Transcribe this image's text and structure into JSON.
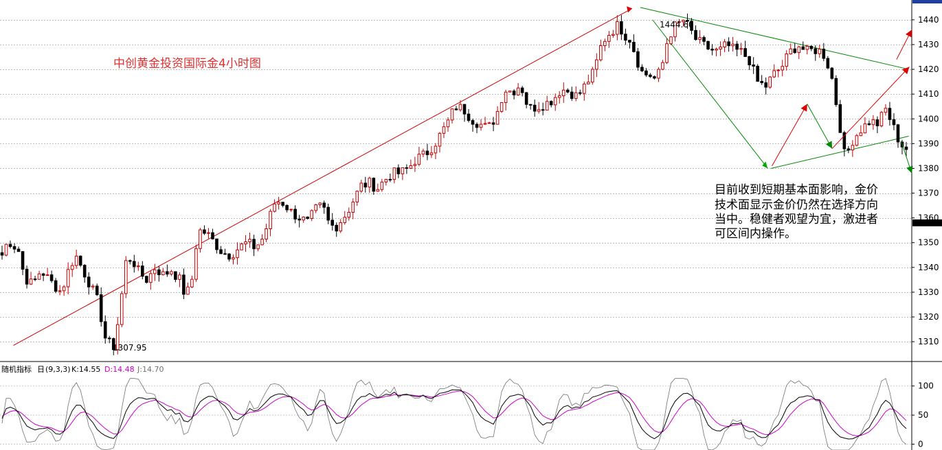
{
  "chart_data": {
    "type": "candlestick",
    "title": "中创黄金投资国际金4小时图",
    "annotation_lines": [
      "目前收到短期基本面影响，金价",
      "技术面显示金价仍然在选择方向",
      "当中。稳健者观望为宜，激进者",
      "可区间内操作。"
    ],
    "price_axis": {
      "ylim": [
        1302,
        1448
      ],
      "ticks": [
        1310,
        1320,
        1330,
        1340,
        1350,
        1360,
        1370,
        1380,
        1390,
        1400,
        1410,
        1420,
        1430,
        1440
      ],
      "current_price_marker": 1358
    },
    "low_label": {
      "text": "1307.95",
      "value": 1307.95
    },
    "high_label": {
      "text": "1444.60",
      "value": 1444.6
    },
    "bar_count": 220,
    "anchors": [
      [
        0,
        1345
      ],
      [
        3,
        1351
      ],
      [
        8,
        1347
      ],
      [
        11,
        1336
      ],
      [
        15,
        1333
      ],
      [
        19,
        1339
      ],
      [
        23,
        1335
      ],
      [
        29,
        1330
      ],
      [
        33,
        1340
      ],
      [
        36,
        1345
      ],
      [
        42,
        1335
      ],
      [
        47,
        1326
      ],
      [
        51,
        1310
      ],
      [
        55,
        1308
      ],
      [
        58,
        1325
      ],
      [
        61,
        1344
      ],
      [
        64,
        1343
      ],
      [
        67,
        1338
      ],
      [
        71,
        1335
      ],
      [
        75,
        1340
      ],
      [
        79,
        1337
      ],
      [
        83,
        1339
      ],
      [
        87,
        1335
      ],
      [
        90,
        1328
      ],
      [
        93,
        1335
      ],
      [
        96,
        1355
      ],
      [
        100,
        1354
      ],
      [
        104,
        1350
      ],
      [
        108,
        1346
      ],
      [
        112,
        1345
      ],
      [
        116,
        1348
      ],
      [
        120,
        1350
      ],
      [
        124,
        1348
      ],
      [
        128,
        1352
      ],
      [
        131,
        1360
      ],
      [
        134,
        1367
      ],
      [
        138,
        1366
      ],
      [
        142,
        1362
      ],
      [
        146,
        1360
      ],
      [
        150,
        1358
      ],
      [
        153,
        1363
      ],
      [
        157,
        1365
      ],
      [
        160,
        1358
      ],
      [
        163,
        1356
      ],
      [
        166,
        1359
      ],
      [
        169,
        1362
      ],
      [
        172,
        1367
      ],
      [
        176,
        1373
      ],
      [
        180,
        1374
      ],
      [
        184,
        1372
      ],
      [
        187,
        1375
      ],
      [
        191,
        1378
      ],
      [
        195,
        1378
      ],
      [
        199,
        1380
      ],
      [
        203,
        1384
      ],
      [
        206,
        1385
      ],
      [
        209,
        1387
      ],
      [
        212,
        1390
      ],
      [
        215,
        1394
      ],
      [
        218,
        1398
      ],
      [
        222,
        1405
      ],
      [
        226,
        1404
      ],
      [
        230,
        1400
      ],
      [
        234,
        1398
      ],
      [
        238,
        1396
      ],
      [
        242,
        1401
      ],
      [
        246,
        1412
      ],
      [
        250,
        1411
      ],
      [
        254,
        1414
      ],
      [
        258,
        1404
      ],
      [
        262,
        1405
      ],
      [
        266,
        1406
      ],
      [
        270,
        1408
      ],
      [
        274,
        1412
      ],
      [
        278,
        1411
      ],
      [
        282,
        1409
      ],
      [
        286,
        1414
      ],
      [
        290,
        1419
      ],
      [
        294,
        1431
      ],
      [
        298,
        1435
      ],
      [
        302,
        1438
      ],
      [
        305,
        1434
      ],
      [
        308,
        1432
      ],
      [
        311,
        1424
      ],
      [
        314,
        1418
      ],
      [
        317,
        1418
      ],
      [
        320,
        1416
      ],
      [
        323,
        1420
      ],
      [
        326,
        1432
      ],
      [
        329,
        1437
      ],
      [
        331,
        1438
      ],
      [
        334,
        1440
      ],
      [
        337,
        1436
      ],
      [
        340,
        1432
      ],
      [
        343,
        1430
      ],
      [
        347,
        1428
      ],
      [
        351,
        1427
      ],
      [
        355,
        1430
      ],
      [
        358,
        1428
      ],
      [
        362,
        1427
      ],
      [
        366,
        1424
      ],
      [
        370,
        1415
      ],
      [
        374,
        1413
      ],
      [
        378,
        1418
      ],
      [
        382,
        1421
      ],
      [
        386,
        1427
      ],
      [
        390,
        1430
      ],
      [
        394,
        1427
      ],
      [
        398,
        1428
      ],
      [
        402,
        1427
      ],
      [
        406,
        1419
      ],
      [
        410,
        1400
      ],
      [
        413,
        1384
      ],
      [
        417,
        1392
      ],
      [
        421,
        1396
      ],
      [
        425,
        1399
      ],
      [
        429,
        1398
      ],
      [
        433,
        1404
      ],
      [
        437,
        1396
      ],
      [
        440,
        1390
      ],
      [
        443,
        1388
      ]
    ],
    "trendlines": [
      {
        "color": "#cc0000",
        "from": [
          0.44,
          1308.5
        ],
        "to": [
          20.8,
          1444.6
        ]
      },
      {
        "color": "#008800",
        "from": [
          21.07,
          1445
        ],
        "to": [
          29.9,
          1420
        ]
      },
      {
        "color": "#008800",
        "from": [
          21.47,
          1440
        ],
        "to": [
          25.26,
          1380
        ]
      },
      {
        "color": "#008800",
        "from": [
          25.37,
          1380
        ],
        "to": [
          29.9,
          1393
        ]
      }
    ],
    "arrows": [
      {
        "color": "#dd0000",
        "from": [
          25.4,
          1381
        ],
        "to": [
          26.56,
          1406
        ]
      },
      {
        "color": "#008800",
        "from": [
          26.56,
          1406
        ],
        "to": [
          27.38,
          1388
        ]
      },
      {
        "color": "#dd0000",
        "from": [
          27.38,
          1388
        ],
        "to": [
          29.92,
          1421
        ]
      },
      {
        "color": "#dd0000",
        "from": [
          29.5,
          1424
        ],
        "to": [
          30.0,
          1436
        ]
      },
      {
        "color": "#008800",
        "from": [
          29.65,
          1391
        ],
        "to": [
          30.0,
          1378
        ]
      }
    ],
    "indicator": {
      "name": "随机指标",
      "period": "日",
      "params": "(9,3,3)",
      "k_label": "K:14.55",
      "d_label": "D:14.48",
      "j_label": "J:14.70",
      "ylim": [
        -10,
        115
      ],
      "ticks": [
        0,
        50,
        100
      ],
      "colors": {
        "K": "#000000",
        "D": "#cc00cc",
        "J": "#707070"
      }
    }
  }
}
